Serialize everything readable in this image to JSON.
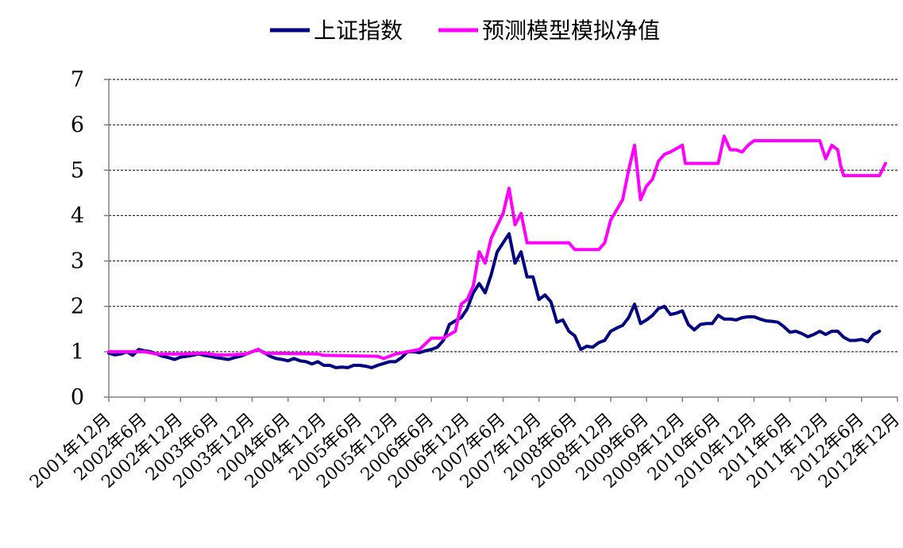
{
  "chart_data": {
    "type": "line",
    "title": "",
    "xlabel": "",
    "ylabel": "",
    "ylim": [
      0,
      7
    ],
    "y_ticks": [
      "0",
      "1",
      "2",
      "3",
      "4",
      "5",
      "6",
      "7"
    ],
    "grid": "horizontal dashed",
    "legend_position": "top-center",
    "x_tick_labels": [
      "2001年12月",
      "2002年6月",
      "2002年12月",
      "2003年6月",
      "2003年12月",
      "2004年6月",
      "2004年12月",
      "2005年6月",
      "2005年12月",
      "2006年6月",
      "2006年12月",
      "2007年6月",
      "2007年12月",
      "2008年6月",
      "2008年12月",
      "2009年6月",
      "2009年12月",
      "2010年6月",
      "2010年12月",
      "2011年6月",
      "2011年12月",
      "2012年6月",
      "2012年12月"
    ],
    "series": [
      {
        "name": "上证指数",
        "color": "#000080",
        "points": [
          [
            0,
            0.97
          ],
          [
            1,
            0.93
          ],
          [
            2,
            0.95
          ],
          [
            3,
            1.0
          ],
          [
            4,
            0.92
          ],
          [
            5,
            1.05
          ],
          [
            6,
            1.02
          ],
          [
            7,
            1.0
          ],
          [
            8,
            0.95
          ],
          [
            9,
            0.9
          ],
          [
            10,
            0.87
          ],
          [
            11,
            0.83
          ],
          [
            12,
            0.88
          ],
          [
            13,
            0.9
          ],
          [
            14,
            0.92
          ],
          [
            15,
            0.95
          ],
          [
            16,
            0.92
          ],
          [
            17,
            0.9
          ],
          [
            18,
            0.87
          ],
          [
            19,
            0.85
          ],
          [
            20,
            0.83
          ],
          [
            21,
            0.87
          ],
          [
            22,
            0.9
          ],
          [
            23,
            0.95
          ],
          [
            24,
            1.0
          ],
          [
            25,
            1.05
          ],
          [
            26,
            0.98
          ],
          [
            27,
            0.9
          ],
          [
            28,
            0.85
          ],
          [
            29,
            0.83
          ],
          [
            30,
            0.8
          ],
          [
            31,
            0.85
          ],
          [
            32,
            0.8
          ],
          [
            33,
            0.78
          ],
          [
            34,
            0.73
          ],
          [
            35,
            0.78
          ],
          [
            36,
            0.7
          ],
          [
            37,
            0.7
          ],
          [
            38,
            0.65
          ],
          [
            39,
            0.66
          ],
          [
            40,
            0.65
          ],
          [
            41,
            0.7
          ],
          [
            42,
            0.7
          ],
          [
            43,
            0.68
          ],
          [
            44,
            0.65
          ],
          [
            45,
            0.7
          ],
          [
            46,
            0.74
          ],
          [
            47,
            0.78
          ],
          [
            48,
            0.78
          ],
          [
            49,
            0.87
          ],
          [
            50,
            1.0
          ],
          [
            51,
            1.0
          ],
          [
            52,
            0.98
          ],
          [
            53,
            1.02
          ],
          [
            54,
            1.05
          ],
          [
            55,
            1.1
          ],
          [
            56,
            1.25
          ],
          [
            57,
            1.6
          ],
          [
            58,
            1.68
          ],
          [
            59,
            1.75
          ],
          [
            60,
            1.95
          ],
          [
            61,
            2.3
          ],
          [
            62,
            2.5
          ],
          [
            63,
            2.3
          ],
          [
            64,
            2.7
          ],
          [
            65,
            3.2
          ],
          [
            66,
            3.4
          ],
          [
            67,
            3.6
          ],
          [
            68,
            2.95
          ],
          [
            69,
            3.2
          ],
          [
            70,
            2.65
          ],
          [
            71,
            2.65
          ],
          [
            72,
            2.15
          ],
          [
            73,
            2.25
          ],
          [
            74,
            2.1
          ],
          [
            75,
            1.65
          ],
          [
            76,
            1.7
          ],
          [
            77,
            1.45
          ],
          [
            78,
            1.35
          ],
          [
            79,
            1.05
          ],
          [
            80,
            1.12
          ],
          [
            81,
            1.1
          ],
          [
            82,
            1.2
          ],
          [
            83,
            1.25
          ],
          [
            84,
            1.45
          ],
          [
            85,
            1.52
          ],
          [
            86,
            1.58
          ],
          [
            87,
            1.75
          ],
          [
            88,
            2.05
          ],
          [
            89,
            1.62
          ],
          [
            90,
            1.7
          ],
          [
            91,
            1.8
          ],
          [
            92,
            1.95
          ],
          [
            93,
            2.0
          ],
          [
            94,
            1.82
          ],
          [
            95,
            1.85
          ],
          [
            96,
            1.9
          ],
          [
            97,
            1.6
          ],
          [
            98,
            1.48
          ],
          [
            99,
            1.6
          ],
          [
            100,
            1.62
          ],
          [
            101,
            1.62
          ],
          [
            102,
            1.8
          ],
          [
            103,
            1.72
          ],
          [
            104,
            1.72
          ],
          [
            105,
            1.7
          ],
          [
            106,
            1.75
          ],
          [
            107,
            1.77
          ],
          [
            108,
            1.77
          ],
          [
            109,
            1.72
          ],
          [
            110,
            1.68
          ],
          [
            111,
            1.67
          ],
          [
            112,
            1.65
          ],
          [
            113,
            1.55
          ],
          [
            114,
            1.43
          ],
          [
            115,
            1.45
          ],
          [
            116,
            1.4
          ],
          [
            117,
            1.33
          ],
          [
            118,
            1.38
          ],
          [
            119,
            1.45
          ],
          [
            120,
            1.38
          ],
          [
            121,
            1.45
          ],
          [
            122,
            1.45
          ],
          [
            123,
            1.32
          ],
          [
            124,
            1.25
          ],
          [
            125,
            1.25
          ],
          [
            126,
            1.27
          ],
          [
            127,
            1.22
          ],
          [
            128,
            1.38
          ],
          [
            129,
            1.45
          ]
        ]
      },
      {
        "name": "预测模型模拟净值",
        "color": "#FF00FF",
        "points": [
          [
            0,
            1.0
          ],
          [
            4,
            1.0
          ],
          [
            6,
            1.0
          ],
          [
            8,
            0.95
          ],
          [
            12,
            0.95
          ],
          [
            16,
            0.97
          ],
          [
            18,
            0.93
          ],
          [
            20,
            0.93
          ],
          [
            23,
            0.95
          ],
          [
            25,
            1.05
          ],
          [
            26,
            0.97
          ],
          [
            35,
            0.95
          ],
          [
            36,
            0.92
          ],
          [
            45,
            0.9
          ],
          [
            46,
            0.85
          ],
          [
            48,
            0.95
          ],
          [
            50,
            1.0
          ],
          [
            52,
            1.05
          ],
          [
            54,
            1.3
          ],
          [
            56,
            1.3
          ],
          [
            58,
            1.45
          ],
          [
            59,
            2.05
          ],
          [
            60,
            2.15
          ],
          [
            61,
            2.45
          ],
          [
            62,
            3.2
          ],
          [
            63,
            2.95
          ],
          [
            64,
            3.5
          ],
          [
            66,
            4.05
          ],
          [
            67,
            4.6
          ],
          [
            68,
            3.8
          ],
          [
            69,
            4.05
          ],
          [
            70,
            3.4
          ],
          [
            77,
            3.4
          ],
          [
            78,
            3.25
          ],
          [
            82,
            3.25
          ],
          [
            83,
            3.4
          ],
          [
            84,
            3.9
          ],
          [
            86,
            4.35
          ],
          [
            87,
            5.0
          ],
          [
            88,
            5.55
          ],
          [
            89,
            4.35
          ],
          [
            90,
            4.65
          ],
          [
            91,
            4.8
          ],
          [
            92,
            5.2
          ],
          [
            93,
            5.35
          ],
          [
            94,
            5.4
          ],
          [
            96,
            5.55
          ],
          [
            96.5,
            5.15
          ],
          [
            102,
            5.15
          ],
          [
            103,
            5.75
          ],
          [
            104,
            5.45
          ],
          [
            105,
            5.45
          ],
          [
            106,
            5.4
          ],
          [
            107,
            5.55
          ],
          [
            108,
            5.65
          ],
          [
            112,
            5.65
          ],
          [
            117,
            5.65
          ],
          [
            119,
            5.65
          ],
          [
            120,
            5.25
          ],
          [
            121,
            5.55
          ],
          [
            122,
            5.45
          ],
          [
            122.5,
            5.1
          ],
          [
            123,
            4.88
          ],
          [
            129,
            4.88
          ],
          [
            130,
            5.15
          ]
        ]
      }
    ]
  }
}
